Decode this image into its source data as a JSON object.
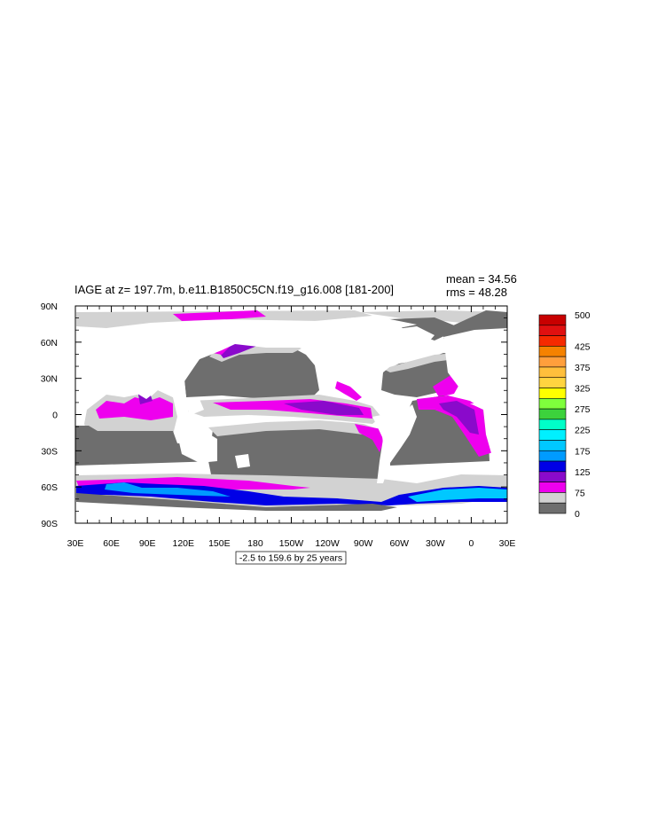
{
  "title": "IAGE at z= 197.7m, b.e11.B1850C5CN.f19_g16.008 [181-200]",
  "stats": {
    "mean": "mean = 34.56",
    "rms": "rms = 48.28"
  },
  "lat_ticks": [
    "90N",
    "60N",
    "30N",
    "0",
    "30S",
    "60S",
    "90S"
  ],
  "lon_ticks": [
    "30E",
    "60E",
    "90E",
    "120E",
    "150E",
    "180",
    "150W",
    "120W",
    "90W",
    "60W",
    "30W",
    "0",
    "30E"
  ],
  "contour_note": "-2.5 to 159.6 by 25 years",
  "colorbar": {
    "labels": [
      "500",
      "425",
      "375",
      "325",
      "275",
      "225",
      "175",
      "125",
      "75",
      "0"
    ],
    "colors_top_to_bottom": [
      "#c80000",
      "#e01010",
      "#f52a00",
      "#f58200",
      "#ff9f3c",
      "#ffbf3c",
      "#ffd440",
      "#ffff00",
      "#7fff3c",
      "#3cd23c",
      "#00ffc8",
      "#00f0ff",
      "#00c8ff",
      "#009bff",
      "#0000e6",
      "#8a0acb",
      "#ee00ee",
      "#d2d2d2",
      "#6e6e6e"
    ]
  },
  "colors": {
    "land": "#ffffff",
    "low_age": "#6e6e6e",
    "gray_light": "#d2d2d2",
    "magenta": "#ee00ee",
    "purple": "#8a0acb",
    "blue": "#0000e6",
    "mid_blue": "#009bff",
    "cyan": "#00c8ff"
  }
}
